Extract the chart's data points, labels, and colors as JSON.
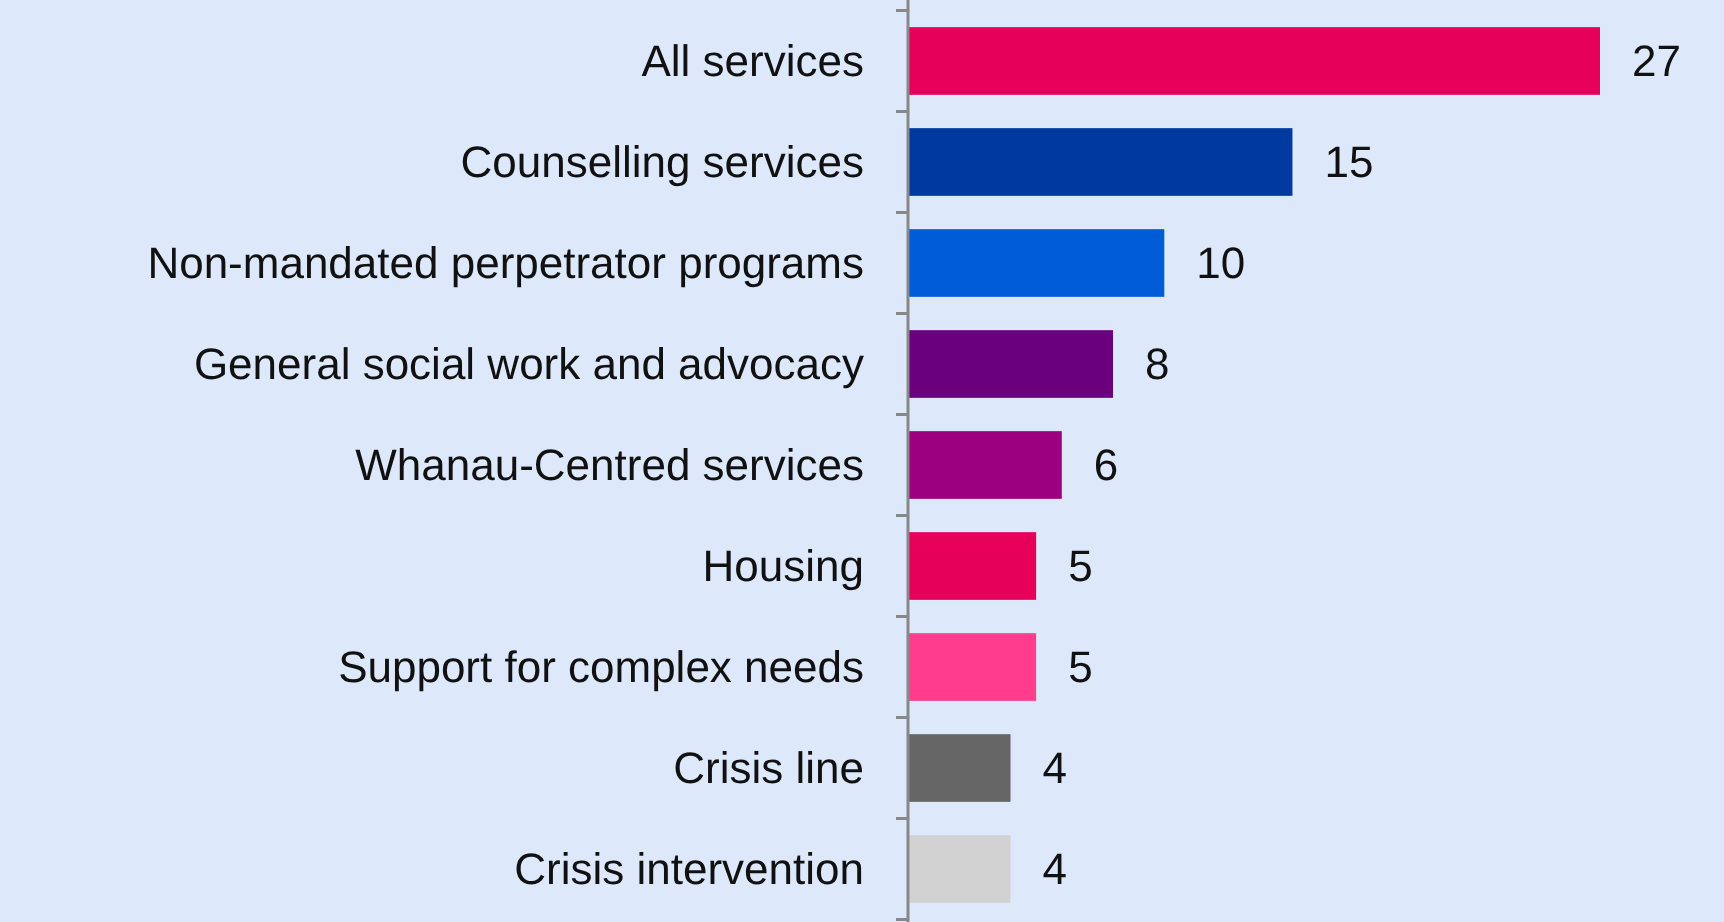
{
  "chart_data": {
    "type": "bar",
    "orientation": "horizontal",
    "categories": [
      "All services",
      "Counselling services",
      "Non-mandated perpetrator programs",
      "General social work and advocacy",
      "Whanau-Centred services",
      "Housing",
      "Support for complex needs",
      "Crisis line",
      "Crisis intervention"
    ],
    "values": [
      27,
      15,
      10,
      8,
      6,
      5,
      5,
      4,
      4
    ],
    "colors": [
      "#e6005a",
      "#0039a0",
      "#005bd6",
      "#6b007f",
      "#9c007f",
      "#e6005a",
      "#ff3d8c",
      "#666666",
      "#d2d2d2"
    ],
    "data_labels": true
  }
}
